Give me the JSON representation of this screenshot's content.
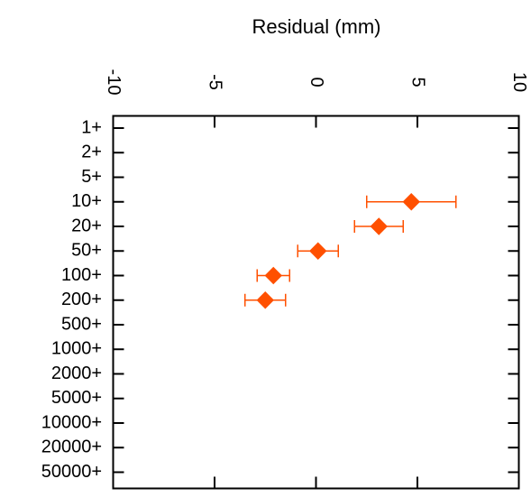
{
  "chart_data": {
    "type": "scatter",
    "title": "",
    "xlabel": "Residual (mm)",
    "ylabel": "",
    "xlim": [
      -10,
      10
    ],
    "x_ticks": [
      -10,
      -5,
      0,
      5,
      10
    ],
    "x_tick_labels": [
      "-10",
      "-5",
      "0",
      "5",
      "10"
    ],
    "x_axis_position": "top",
    "x_tick_label_orientation": "rotated",
    "categories": [
      "1+",
      "2+",
      "5+",
      "10+",
      "20+",
      "50+",
      "100+",
      "200+",
      "500+",
      "1000+",
      "2000+",
      "5000+",
      "10000+",
      "20000+",
      "50000+"
    ],
    "grid": false,
    "legend": "none",
    "marker": "diamond",
    "color": "#ff5000",
    "points": [
      {
        "category": "10+",
        "x": 4.7,
        "xerr_low": 2.2,
        "xerr_high": 2.2
      },
      {
        "category": "20+",
        "x": 3.1,
        "xerr_low": 1.2,
        "xerr_high": 1.2
      },
      {
        "category": "50+",
        "x": 0.1,
        "xerr_low": 1.0,
        "xerr_high": 1.0
      },
      {
        "category": "100+",
        "x": -2.1,
        "xerr_low": 0.8,
        "xerr_high": 0.8
      },
      {
        "category": "200+",
        "x": -2.5,
        "xerr_low": 1.0,
        "xerr_high": 1.0
      }
    ]
  }
}
